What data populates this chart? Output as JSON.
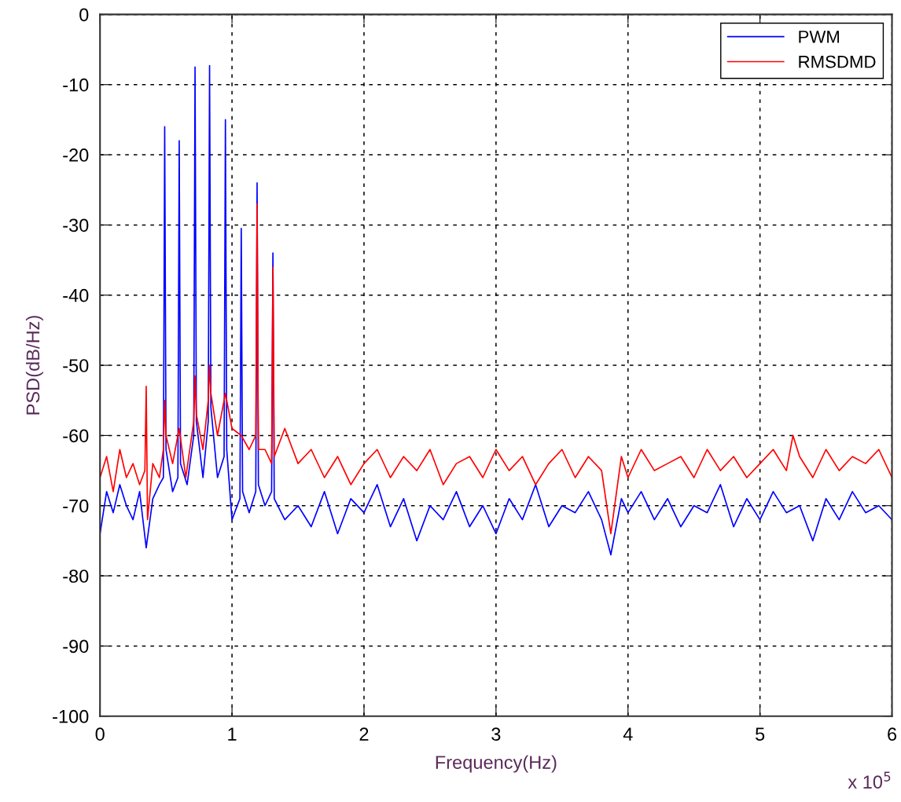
{
  "chart_data": {
    "type": "line",
    "xlabel": "Frequency(Hz)",
    "ylabel": "PSD(dB/Hz)",
    "annotations": [
      "x 10$^{5}$"
    ],
    "xlim": [
      0,
      6
    ],
    "xticks": [
      0,
      1,
      2,
      3,
      4,
      5,
      6
    ],
    "ylim": [
      -100,
      0
    ],
    "yticks": [
      -100,
      -90,
      -80,
      -70,
      -60,
      -50,
      -40,
      -30,
      -20,
      -10,
      0
    ],
    "grid": true,
    "legend": "top right",
    "line_style": "solid",
    "marker": "none",
    "series": [
      {
        "name": "PWM",
        "color": "#0000ff",
        "x": [
          0,
          0.05,
          0.1,
          0.15,
          0.2,
          0.25,
          0.3,
          0.35,
          0.4,
          0.45,
          0.48,
          0.49,
          0.5,
          0.55,
          0.59,
          0.6,
          0.61,
          0.66,
          0.71,
          0.72,
          0.73,
          0.78,
          0.82,
          0.83,
          0.84,
          0.89,
          0.94,
          0.95,
          0.96,
          1.0,
          1.06,
          1.07,
          1.08,
          1.13,
          1.18,
          1.19,
          1.2,
          1.25,
          1.3,
          1.31,
          1.32,
          1.4,
          1.5,
          1.6,
          1.7,
          1.8,
          1.9,
          2.0,
          2.1,
          2.2,
          2.3,
          2.4,
          2.5,
          2.6,
          2.7,
          2.8,
          2.9,
          3.0,
          3.1,
          3.2,
          3.3,
          3.4,
          3.5,
          3.6,
          3.7,
          3.8,
          3.87,
          3.95,
          4.0,
          4.1,
          4.2,
          4.3,
          4.4,
          4.5,
          4.6,
          4.7,
          4.8,
          4.9,
          5.0,
          5.1,
          5.2,
          5.3,
          5.4,
          5.5,
          5.6,
          5.7,
          5.8,
          5.9,
          6.0
        ],
        "values": [
          -74,
          -68,
          -71,
          -67,
          -70,
          -72,
          -68,
          -76,
          -69,
          -67,
          -66,
          -16,
          -62,
          -68,
          -66,
          -18,
          -64,
          -67,
          -60,
          -7.5,
          -58,
          -66,
          -58,
          -7.3,
          -56,
          -66,
          -63,
          -15,
          -62,
          -72,
          -69,
          -30.5,
          -68,
          -71,
          -68,
          -24,
          -67,
          -70,
          -68,
          -34,
          -69,
          -72,
          -70,
          -73,
          -68,
          -74,
          -69,
          -71,
          -67,
          -73,
          -69,
          -75,
          -70,
          -72,
          -68,
          -73,
          -70,
          -74,
          -69,
          -72,
          -67,
          -73,
          -70,
          -71,
          -68,
          -72,
          -77,
          -69,
          -71,
          -68,
          -72,
          -69,
          -73,
          -70,
          -71,
          -67,
          -73,
          -69,
          -72,
          -68,
          -71,
          -70,
          -75,
          -69,
          -72,
          -68,
          -71,
          -70,
          -72
        ]
      },
      {
        "name": "RMSDMD",
        "color": "#ff0000",
        "x": [
          0,
          0.05,
          0.1,
          0.15,
          0.2,
          0.25,
          0.3,
          0.34,
          0.35,
          0.36,
          0.4,
          0.45,
          0.48,
          0.49,
          0.5,
          0.55,
          0.6,
          0.65,
          0.71,
          0.72,
          0.73,
          0.78,
          0.82,
          0.83,
          0.84,
          0.89,
          0.95,
          1.0,
          1.07,
          1.13,
          1.18,
          1.19,
          1.2,
          1.25,
          1.3,
          1.31,
          1.32,
          1.4,
          1.5,
          1.6,
          1.7,
          1.8,
          1.9,
          2.0,
          2.1,
          2.2,
          2.3,
          2.4,
          2.5,
          2.6,
          2.7,
          2.8,
          2.9,
          3.0,
          3.1,
          3.2,
          3.3,
          3.4,
          3.5,
          3.6,
          3.7,
          3.8,
          3.87,
          3.95,
          4.0,
          4.1,
          4.2,
          4.3,
          4.4,
          4.5,
          4.6,
          4.7,
          4.8,
          4.9,
          5.0,
          5.1,
          5.2,
          5.25,
          5.3,
          5.4,
          5.5,
          5.6,
          5.7,
          5.8,
          5.9,
          6.0
        ],
        "values": [
          -66,
          -63,
          -68,
          -62,
          -66,
          -64,
          -67,
          -65,
          -53,
          -72,
          -64,
          -66,
          -62,
          -55,
          -60,
          -64,
          -59,
          -66,
          -58,
          -51.5,
          -57,
          -62,
          -55,
          -50,
          -54,
          -60,
          -54,
          -59,
          -60,
          -62,
          -60,
          -27,
          -62,
          -62,
          -64,
          -36,
          -63,
          -59,
          -64,
          -62,
          -66,
          -63,
          -67,
          -64,
          -62,
          -66,
          -63,
          -65,
          -62,
          -67,
          -64,
          -63,
          -66,
          -62,
          -65,
          -63,
          -67,
          -64,
          -62,
          -66,
          -63,
          -65,
          -74,
          -63,
          -66,
          -62,
          -65,
          -64,
          -63,
          -66,
          -62,
          -65,
          -63,
          -66,
          -64,
          -62,
          -65,
          -60,
          -63,
          -66,
          -62,
          -65,
          -63,
          -64,
          -62,
          -66
        ]
      }
    ]
  }
}
